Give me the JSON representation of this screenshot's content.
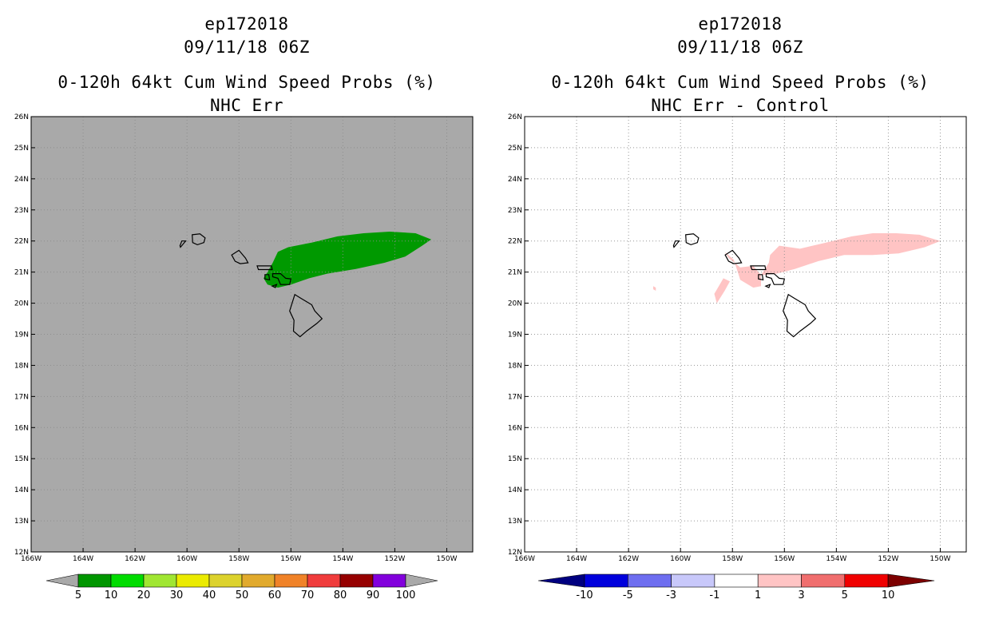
{
  "colors": {
    "grey_background": "#a9a9a9",
    "green_shading": "#009900",
    "pink_shading": "#ffc4c4",
    "coast_line": "#000000"
  },
  "chart_data": [
    {
      "id": "left",
      "type": "heatmap",
      "title_lines": [
        "ep172018",
        "09/11/18 06Z",
        "0-120h 64kt Cum Wind Speed Probs (%)",
        "NHC Err"
      ],
      "x_ticks": [
        "166W",
        "164W",
        "162W",
        "160W",
        "158W",
        "156W",
        "154W",
        "152W",
        "150W"
      ],
      "y_ticks": [
        "12N",
        "13N",
        "14N",
        "15N",
        "16N",
        "17N",
        "18N",
        "19N",
        "20N",
        "21N",
        "22N",
        "23N",
        "24N",
        "25N",
        "26N"
      ],
      "xlim": [
        -166,
        -149
      ],
      "ylim": [
        12,
        26
      ],
      "grid": true,
      "background_color": "#a9a9a9",
      "legend": {
        "labels": [
          "5",
          "10",
          "20",
          "30",
          "40",
          "50",
          "60",
          "70",
          "80",
          "90",
          "100"
        ],
        "colors": [
          "#009600",
          "#00dc00",
          "#a0e632",
          "#ebeb00",
          "#dcd22d",
          "#e1aa2d",
          "#f08228",
          "#f03c3c",
          "#960000",
          "#8200dc"
        ],
        "under_color": "#a9a9a9",
        "over_color": "#a9a9a9"
      },
      "shaded_regions": [
        {
          "value_range": "5-10",
          "color": "#009900",
          "polygon_lonlat": [
            [
              -156.9,
              20.6
            ],
            [
              -156.5,
              20.5
            ],
            [
              -156.0,
              20.6
            ],
            [
              -155.3,
              20.8
            ],
            [
              -154.6,
              20.95
            ],
            [
              -153.5,
              21.1
            ],
            [
              -152.4,
              21.3
            ],
            [
              -151.6,
              21.5
            ],
            [
              -150.95,
              21.85
            ],
            [
              -150.6,
              22.05
            ],
            [
              -151.2,
              22.25
            ],
            [
              -152.2,
              22.3
            ],
            [
              -153.2,
              22.25
            ],
            [
              -154.2,
              22.15
            ],
            [
              -155.2,
              21.95
            ],
            [
              -156.1,
              21.8
            ],
            [
              -156.5,
              21.65
            ],
            [
              -156.7,
              21.3
            ],
            [
              -156.9,
              21.0
            ],
            [
              -157.05,
              20.8
            ]
          ]
        }
      ]
    },
    {
      "id": "right",
      "type": "heatmap",
      "title_lines": [
        "ep172018",
        "09/11/18 06Z",
        "0-120h 64kt Cum Wind Speed Probs (%)",
        "NHC Err - Control"
      ],
      "x_ticks": [
        "166W",
        "164W",
        "162W",
        "160W",
        "158W",
        "156W",
        "154W",
        "152W",
        "150W"
      ],
      "y_ticks": [
        "12N",
        "13N",
        "14N",
        "15N",
        "16N",
        "17N",
        "18N",
        "19N",
        "20N",
        "21N",
        "22N",
        "23N",
        "24N",
        "25N",
        "26N"
      ],
      "xlim": [
        -166,
        -149
      ],
      "ylim": [
        12,
        26
      ],
      "grid": true,
      "background_color": "#ffffff",
      "legend": {
        "labels": [
          "-10",
          "-5",
          "-3",
          "-1",
          "1",
          "3",
          "5",
          "10"
        ],
        "colors": [
          "#0000dc",
          "#6e6ef0",
          "#c8c8fa",
          "#ffffff",
          "#ffc4c4",
          "#f06e6e",
          "#f00000"
        ],
        "under_color": "#000080",
        "over_color": "#7d0000"
      },
      "shaded_regions": [
        {
          "value_range": "1-3",
          "color": "#ffc4c4",
          "polygon_lonlat": [
            [
              -157.7,
              20.75
            ],
            [
              -157.2,
              20.5
            ],
            [
              -156.9,
              20.55
            ],
            [
              -156.9,
              20.9
            ],
            [
              -156.75,
              21.1
            ],
            [
              -156.6,
              21.3
            ],
            [
              -156.55,
              21.55
            ],
            [
              -156.2,
              21.85
            ],
            [
              -155.4,
              21.75
            ],
            [
              -154.4,
              21.95
            ],
            [
              -153.4,
              22.15
            ],
            [
              -152.6,
              22.25
            ],
            [
              -151.7,
              22.25
            ],
            [
              -150.8,
              22.2
            ],
            [
              -150.0,
              22.0
            ],
            [
              -150.6,
              21.8
            ],
            [
              -151.6,
              21.6
            ],
            [
              -152.6,
              21.55
            ],
            [
              -153.7,
              21.55
            ],
            [
              -154.7,
              21.35
            ],
            [
              -155.6,
              21.1
            ],
            [
              -156.3,
              20.95
            ],
            [
              -156.9,
              20.9
            ],
            [
              -157.2,
              21.2
            ],
            [
              -157.7,
              21.15
            ],
            [
              -158.15,
              21.45
            ],
            [
              -158.3,
              21.65
            ],
            [
              -157.95,
              21.4
            ]
          ]
        },
        {
          "value_range": "1-3",
          "color": "#ffc4c4",
          "polygon_lonlat": [
            [
              -158.6,
              20.0
            ],
            [
              -158.3,
              20.4
            ],
            [
              -158.1,
              20.7
            ],
            [
              -158.35,
              20.8
            ],
            [
              -158.7,
              20.3
            ]
          ]
        },
        {
          "value_range": "1-3",
          "color": "#ffc4c4",
          "polygon_lonlat": [
            [
              -161.05,
              20.55
            ],
            [
              -160.95,
              20.5
            ],
            [
              -160.95,
              20.4
            ],
            [
              -161.05,
              20.45
            ]
          ]
        }
      ]
    }
  ],
  "coastlines_lonlat": [
    {
      "name": "Kauai",
      "points": [
        [
          -159.8,
          22.2
        ],
        [
          -159.5,
          22.23
        ],
        [
          -159.3,
          22.1
        ],
        [
          -159.35,
          21.95
        ],
        [
          -159.6,
          21.88
        ],
        [
          -159.78,
          21.95
        ],
        [
          -159.8,
          22.2
        ]
      ]
    },
    {
      "name": "Niihau",
      "points": [
        [
          -160.25,
          21.8
        ],
        [
          -160.05,
          22.0
        ],
        [
          -160.2,
          22.0
        ],
        [
          -160.27,
          21.85
        ]
      ]
    },
    {
      "name": "Oahu",
      "points": [
        [
          -158.28,
          21.55
        ],
        [
          -158.0,
          21.7
        ],
        [
          -157.75,
          21.45
        ],
        [
          -157.65,
          21.3
        ],
        [
          -157.95,
          21.27
        ],
        [
          -158.15,
          21.35
        ],
        [
          -158.28,
          21.55
        ]
      ]
    },
    {
      "name": "Molokai",
      "points": [
        [
          -157.3,
          21.2
        ],
        [
          -156.75,
          21.2
        ],
        [
          -156.72,
          21.08
        ],
        [
          -157.25,
          21.08
        ],
        [
          -157.3,
          21.2
        ]
      ]
    },
    {
      "name": "Lanai",
      "points": [
        [
          -157.0,
          20.92
        ],
        [
          -156.85,
          20.92
        ],
        [
          -156.82,
          20.75
        ],
        [
          -157.0,
          20.78
        ]
      ]
    },
    {
      "name": "Maui",
      "points": [
        [
          -156.7,
          20.95
        ],
        [
          -156.4,
          20.95
        ],
        [
          -156.2,
          20.8
        ],
        [
          -156.0,
          20.78
        ],
        [
          -156.05,
          20.6
        ],
        [
          -156.4,
          20.6
        ],
        [
          -156.5,
          20.8
        ],
        [
          -156.7,
          20.85
        ]
      ]
    },
    {
      "name": "Kahoolawe",
      "points": [
        [
          -156.72,
          20.55
        ],
        [
          -156.55,
          20.6
        ],
        [
          -156.6,
          20.5
        ]
      ]
    },
    {
      "name": "Hawaii",
      "points": [
        [
          -155.85,
          20.28
        ],
        [
          -155.6,
          20.15
        ],
        [
          -155.2,
          19.95
        ],
        [
          -155.08,
          19.75
        ],
        [
          -154.8,
          19.5
        ],
        [
          -155.0,
          19.35
        ],
        [
          -155.4,
          19.1
        ],
        [
          -155.65,
          18.92
        ],
        [
          -155.9,
          19.1
        ],
        [
          -155.88,
          19.45
        ],
        [
          -156.05,
          19.75
        ],
        [
          -155.85,
          20.28
        ]
      ]
    }
  ]
}
